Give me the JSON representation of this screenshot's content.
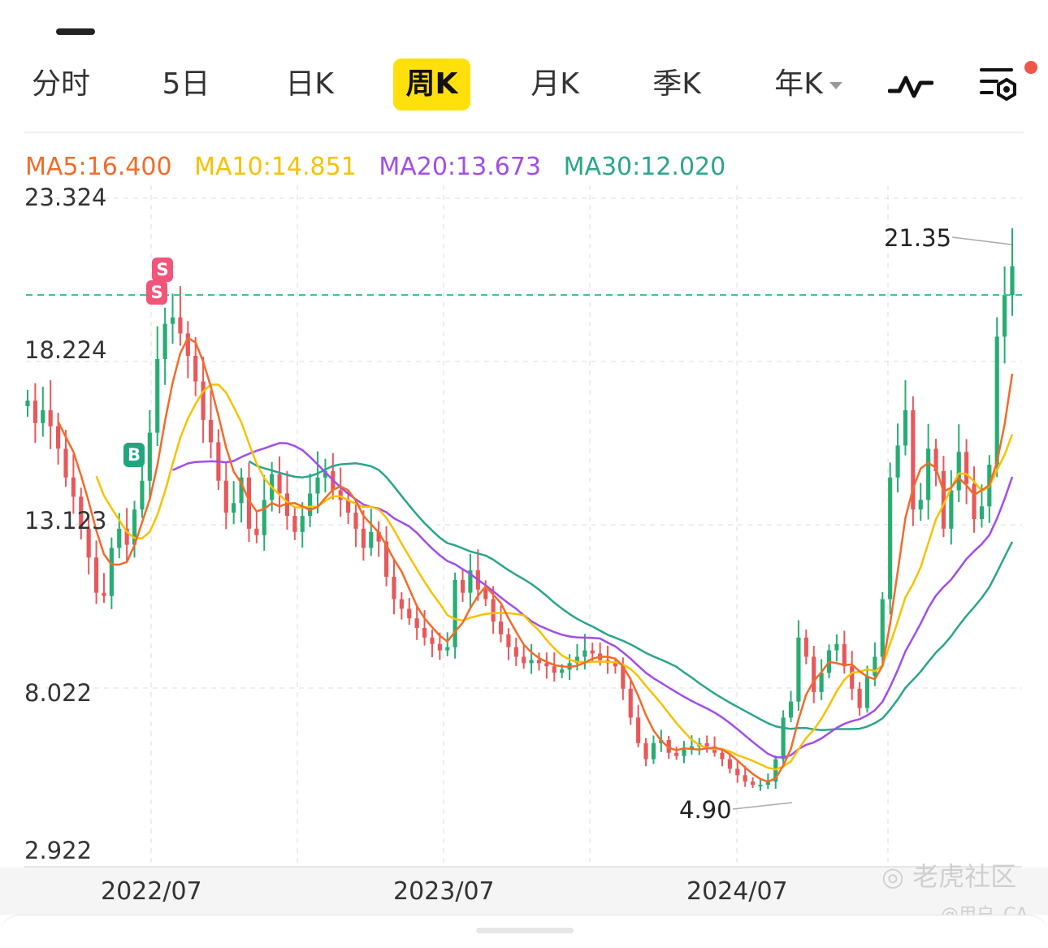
{
  "tabs": [
    {
      "label": "分时",
      "active": false
    },
    {
      "label": "5日",
      "active": false
    },
    {
      "label": "日K",
      "active": false
    },
    {
      "label": "周K",
      "active": true
    },
    {
      "label": "月K",
      "active": false
    },
    {
      "label": "季K",
      "active": false
    },
    {
      "label": "年K",
      "active": false
    }
  ],
  "toolbar": {
    "indicator_icon": "pulse-icon",
    "settings_icon": "settings-sliders-icon",
    "notification_dot": true
  },
  "ma_legend": [
    {
      "label": "MA5:16.400",
      "color": "#f26b2a"
    },
    {
      "label": "MA10:14.851",
      "color": "#f7c200"
    },
    {
      "label": "MA20:13.673",
      "color": "#a24de8"
    },
    {
      "label": "MA30:12.020",
      "color": "#2aa58a"
    }
  ],
  "colors": {
    "up": "#27ad73",
    "down": "#e8585a",
    "last_price_line": "#2bc28a"
  },
  "chart_data": {
    "type": "candlestick",
    "interval": "weekly",
    "y_tick_labels": [
      "23.324",
      "18.224",
      "13.123",
      "8.022",
      "2.922"
    ],
    "ylim": [
      2.922,
      23.324
    ],
    "x_tick_labels": [
      "2022/07",
      "2023/07",
      "2024/07"
    ],
    "high_annotation": "21.35",
    "low_annotation": "4.90",
    "last_price_dashed": 20.3,
    "signals": [
      {
        "type": "B",
        "date": "2022/06",
        "price": 14.2
      },
      {
        "type": "S",
        "date": "2022/07",
        "price": 20.3
      },
      {
        "type": "S",
        "date": "2022/07",
        "price": 19.7
      }
    ],
    "weekly_close": [
      17.0,
      16.3,
      16.7,
      16.2,
      15.5,
      14.6,
      14.0,
      13.0,
      12.1,
      11.0,
      10.9,
      12.4,
      13.0,
      12.5,
      13.6,
      14.5,
      16.0,
      18.3,
      19.4,
      19.6,
      19.1,
      18.4,
      17.6,
      16.4,
      15.7,
      14.5,
      13.5,
      13.8,
      14.6,
      13.0,
      12.8,
      13.9,
      14.7,
      14.1,
      13.4,
      12.9,
      13.4,
      14.1,
      14.6,
      14.8,
      14.2,
      13.9,
      13.5,
      13.0,
      12.4,
      12.9,
      12.6,
      11.5,
      10.8,
      10.5,
      10.2,
      9.9,
      9.6,
      9.4,
      9.2,
      9.3,
      11.4,
      11.0,
      11.7,
      11.1,
      10.8,
      10.1,
      9.7,
      9.3,
      9.0,
      8.8,
      8.9,
      8.8,
      8.7,
      8.5,
      8.6,
      8.8,
      9.0,
      9.2,
      9.1,
      8.9,
      8.8,
      8.7,
      8.0,
      7.1,
      6.3,
      5.8,
      6.3,
      6.4,
      6.0,
      5.9,
      6.1,
      6.2,
      6.3,
      6.2,
      6.0,
      5.8,
      5.5,
      5.3,
      5.1,
      5.0,
      5.0,
      5.1,
      5.8,
      7.1,
      7.6,
      9.6,
      9.0,
      7.9,
      8.5,
      9.2,
      9.4,
      8.7,
      8.0,
      7.4,
      8.4,
      9.0,
      10.8,
      14.6,
      15.6,
      16.7,
      13.6,
      13.9,
      15.5,
      14.8,
      13.0,
      14.2,
      15.4,
      14.4,
      13.3,
      13.7,
      15.0,
      19.0,
      20.3,
      21.2
    ]
  }
}
